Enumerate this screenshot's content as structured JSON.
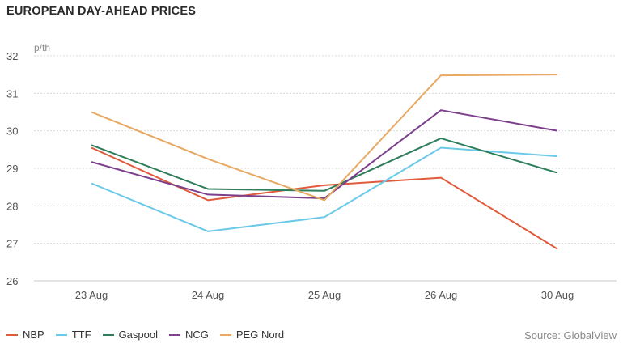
{
  "title": "EUROPEAN DAY-AHEAD PRICES",
  "source": "Source: GlobalView",
  "chart_data": {
    "type": "line",
    "title": "EUROPEAN DAY-AHEAD PRICES",
    "ylabel": "p/th",
    "xlabel": "",
    "categories": [
      "23 Aug",
      "24 Aug",
      "25 Aug",
      "26 Aug",
      "30 Aug"
    ],
    "ylim": [
      26,
      32
    ],
    "yticks": [
      26,
      27,
      28,
      29,
      30,
      31,
      32
    ],
    "grid": true,
    "legend_position": "bottom-left",
    "series": [
      {
        "name": "NBP",
        "color": "#e05a3c",
        "values": [
          29.55,
          28.15,
          28.55,
          28.75,
          26.85
        ]
      },
      {
        "name": "TTF",
        "color": "#6cc9e8",
        "values": [
          28.6,
          27.32,
          27.7,
          29.55,
          29.32
        ]
      },
      {
        "name": "Gaspool",
        "color": "#2e7d5b",
        "values": [
          29.62,
          28.45,
          28.4,
          29.8,
          28.88
        ]
      },
      {
        "name": "NCG",
        "color": "#7b3f8c",
        "values": [
          29.17,
          28.3,
          28.2,
          30.55,
          30.0
        ]
      },
      {
        "name": "PEG Nord",
        "color": "#e8a963",
        "values": [
          30.5,
          29.25,
          28.15,
          31.48,
          31.5
        ]
      }
    ]
  }
}
